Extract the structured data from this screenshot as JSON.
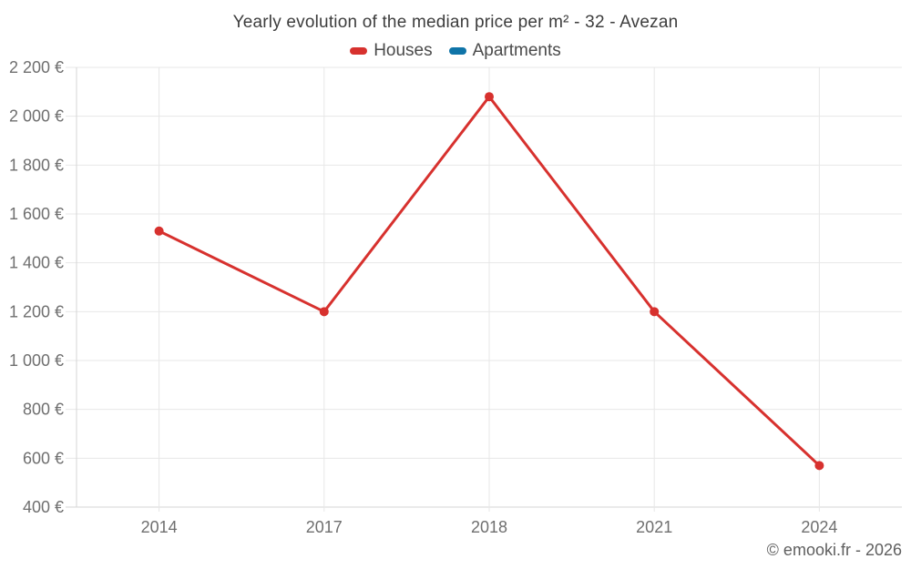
{
  "title": "Yearly evolution of the median price per m² - 32 - Avezan",
  "copyright": "© emooki.fr - 2026",
  "legend": [
    {
      "label": "Houses",
      "color": "#d7312e"
    },
    {
      "label": "Apartments",
      "color": "#0f74a8"
    }
  ],
  "colors": {
    "houses": "#d7312e",
    "apartments": "#0f74a8",
    "gridline": "#e7e7e7",
    "axis_line": "#d6d6d6",
    "tick_label": "#6f6f6f",
    "title_text": "#3d3d3d",
    "legend_text": "#4a4a4a",
    "copyright_text": "#5f5f5f",
    "background": "#ffffff"
  },
  "chart_data": {
    "type": "line",
    "title": "Yearly evolution of the median price per m² - 32 - Avezan",
    "categories": [
      "2014",
      "2017",
      "2018",
      "2021",
      "2024"
    ],
    "series": [
      {
        "name": "Houses",
        "color": "#d7312e",
        "values": [
          1530,
          1200,
          2080,
          1200,
          570
        ]
      },
      {
        "name": "Apartments",
        "color": "#0f74a8",
        "values": []
      }
    ],
    "ylim": [
      400,
      2200
    ],
    "ytick_step": 200,
    "ytick_values": [
      400,
      600,
      800,
      1000,
      1200,
      1400,
      1600,
      1800,
      2000,
      2200
    ],
    "ytick_labels": [
      "400 €",
      "600 €",
      "800 €",
      "1 000 €",
      "1 200 €",
      "1 400 €",
      "1 600 €",
      "1 800 €",
      "2 000 €",
      "2 200 €"
    ],
    "xlabel": "",
    "ylabel": "",
    "grid": true,
    "legend_position": "top"
  }
}
